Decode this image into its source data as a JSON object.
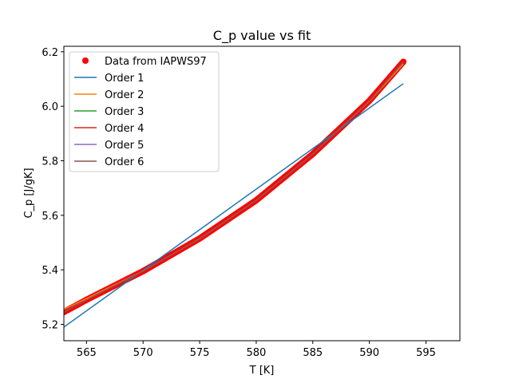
{
  "chart_data": {
    "type": "line",
    "title": "C_p value vs fit",
    "xlabel": "T [K]",
    "ylabel": "C_p [J/gK]",
    "xlim": [
      563,
      598
    ],
    "ylim": [
      5.14,
      6.22
    ],
    "xticks": [
      565,
      570,
      575,
      580,
      585,
      590,
      595
    ],
    "yticks": [
      5.2,
      5.4,
      5.6,
      5.8,
      6.0,
      6.2
    ],
    "xtick_labels": [
      "565",
      "570",
      "575",
      "580",
      "585",
      "590",
      "595"
    ],
    "ytick_labels": [
      "5.2",
      "5.4",
      "5.6",
      "5.8",
      "6.0",
      "6.2"
    ],
    "legend_position": "upper left",
    "scatter": {
      "name": "Data from IAPWS97",
      "color": "#ff0000",
      "x_range": [
        563,
        593
      ],
      "count": 301,
      "anchor_x": [
        563,
        565,
        570,
        575,
        580,
        585,
        590,
        593
      ],
      "anchor_y": [
        5.245,
        5.29,
        5.395,
        5.515,
        5.655,
        5.825,
        6.02,
        6.163
      ]
    },
    "series": [
      {
        "name": "Order 1",
        "color": "#1f77b4",
        "x": [
          563,
          593
        ],
        "y": [
          5.19,
          6.083
        ]
      },
      {
        "name": "Order 2",
        "color": "#ff7f0e",
        "x": [
          563,
          565,
          570,
          575,
          580,
          585,
          590,
          593
        ],
        "y": [
          5.255,
          5.295,
          5.396,
          5.514,
          5.655,
          5.825,
          6.018,
          6.155
        ]
      },
      {
        "name": "Order 3",
        "color": "#2ca02c",
        "x": [
          563,
          565,
          570,
          575,
          580,
          585,
          590,
          593
        ],
        "y": [
          5.245,
          5.29,
          5.395,
          5.515,
          5.655,
          5.825,
          6.02,
          6.162
        ]
      },
      {
        "name": "Order 4",
        "color": "#d62728",
        "x": [
          563,
          565,
          570,
          575,
          580,
          585,
          590,
          593
        ],
        "y": [
          5.245,
          5.29,
          5.395,
          5.515,
          5.655,
          5.825,
          6.02,
          6.163
        ]
      },
      {
        "name": "Order 5",
        "color": "#9467bd",
        "x": [
          563,
          565,
          570,
          575,
          580,
          585,
          590,
          593
        ],
        "y": [
          5.245,
          5.29,
          5.395,
          5.515,
          5.655,
          5.825,
          6.02,
          6.163
        ]
      },
      {
        "name": "Order 6",
        "color": "#8c564b",
        "x": [
          563,
          565,
          570,
          575,
          580,
          585,
          590,
          593
        ],
        "y": [
          5.245,
          5.29,
          5.395,
          5.515,
          5.655,
          5.825,
          6.02,
          6.163
        ]
      }
    ]
  }
}
